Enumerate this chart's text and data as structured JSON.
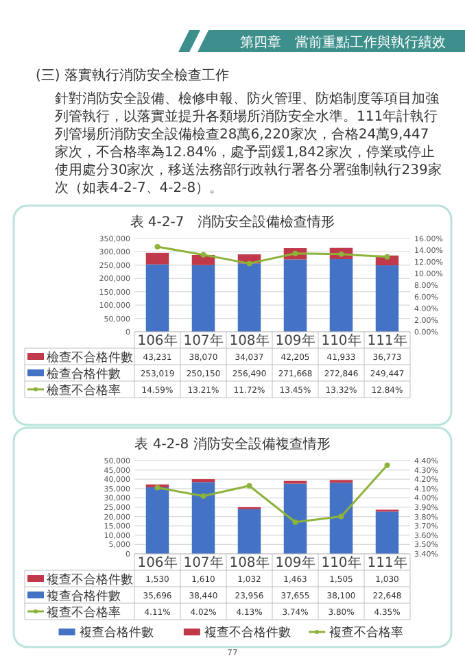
{
  "chart_data": [
    {
      "type": "bar",
      "title": "表 4-2-7　消防安全設備檢查情形",
      "stacked": true,
      "grid": "y",
      "legend": "left",
      "marker": "circle",
      "annotations": [
        "第四章　當前重點工作與執行績效",
        "(三) 落實執行消防安全檢查工作",
        "針對消防安全設備、檢修申報、防火管理、防焰制度等項目加強列管執行，以落實並提升各類場所消防安全水準。111年計執行列管場所消防安全設備檢查28萬6,220家次，合格24萬9,447家次，不合格率為12.84%，處予罰鍰1,842家次，停業或停止使用處分30家次，移送法務部行政執行署各分署強制執行239家次（如表4-2-7、4-2-8）。"
      ],
      "categories": [
        "106年",
        "107年",
        "108年",
        "109年",
        "110年",
        "111年"
      ],
      "ylim": [
        0,
        350000
      ],
      "yticks": [
        {
          "value": 0,
          "label": "0"
        },
        {
          "value": 50000,
          "label": "50,000"
        },
        {
          "value": 100000,
          "label": "100,000"
        },
        {
          "value": 150000,
          "label": "150,000"
        },
        {
          "value": 200000,
          "label": "200,000"
        },
        {
          "value": 250000,
          "label": "250,000"
        },
        {
          "value": 300000,
          "label": "300,000"
        },
        {
          "value": 350000,
          "label": "350,000"
        }
      ],
      "y2lim": [
        0,
        16
      ],
      "y2ticks": [
        {
          "value": 0,
          "label": "0.00%"
        },
        {
          "value": 2,
          "label": "2.00%"
        },
        {
          "value": 4,
          "label": "4.00%"
        },
        {
          "value": 6,
          "label": "6.00%"
        },
        {
          "value": 8,
          "label": "8.00%"
        },
        {
          "value": 10,
          "label": "10.00%"
        },
        {
          "value": 12,
          "label": "12.00%"
        },
        {
          "value": 14,
          "label": "14.00%"
        },
        {
          "value": 16,
          "label": "16.00%"
        }
      ],
      "series": [
        {
          "name": "檢查合格件數",
          "color": "#4472c4",
          "values": [
            253019,
            250150,
            256490,
            271668,
            272846,
            249447
          ],
          "value_labels": [
            "253,019",
            "250,150",
            "256,490",
            "271,668",
            "272,846",
            "249,447"
          ]
        },
        {
          "name": "檢查不合格件數",
          "color": "#c0394a",
          "values": [
            43231,
            38070,
            34037,
            42205,
            41933,
            36773
          ],
          "value_labels": [
            "43,231",
            "38,070",
            "34,037",
            "42,205",
            "41,933",
            "36,773"
          ]
        },
        {
          "name": "檢查不合格率",
          "type": "line",
          "axis": "y2",
          "color": "#8db33a",
          "values": [
            14.59,
            13.21,
            11.72,
            13.45,
            13.32,
            12.84
          ],
          "value_labels": [
            "14.59%",
            "13.21%",
            "11.72%",
            "13.45%",
            "13.32%",
            "12.84%"
          ]
        }
      ]
    },
    {
      "type": "bar",
      "title": "表 4-2-8 消防安全設備複查情形",
      "stacked": true,
      "grid": "y",
      "legend": "bottom",
      "marker": "circle",
      "annotations": [
        "77"
      ],
      "categories": [
        "106年",
        "107年",
        "108年",
        "109年",
        "110年",
        "111年"
      ],
      "ylim": [
        0,
        50000
      ],
      "yticks": [
        {
          "value": 0,
          "label": "0"
        },
        {
          "value": 5000,
          "label": "5,000"
        },
        {
          "value": 10000,
          "label": "10,000"
        },
        {
          "value": 15000,
          "label": "15,000"
        },
        {
          "value": 20000,
          "label": "20,000"
        },
        {
          "value": 25000,
          "label": "25,000"
        },
        {
          "value": 30000,
          "label": "30,000"
        },
        {
          "value": 35000,
          "label": "35,000"
        },
        {
          "value": 40000,
          "label": "40,000"
        },
        {
          "value": 45000,
          "label": "45,000"
        },
        {
          "value": 50000,
          "label": "50,000"
        }
      ],
      "y2lim": [
        3.4,
        4.4
      ],
      "y2ticks": [
        {
          "value": 3.4,
          "label": "3.40%"
        },
        {
          "value": 3.5,
          "label": "3.50%"
        },
        {
          "value": 3.6,
          "label": "3.60%"
        },
        {
          "value": 3.7,
          "label": "3.70%"
        },
        {
          "value": 3.8,
          "label": "3.80%"
        },
        {
          "value": 3.9,
          "label": "3.90%"
        },
        {
          "value": 4.0,
          "label": "4.00%"
        },
        {
          "value": 4.1,
          "label": "4.10%"
        },
        {
          "value": 4.2,
          "label": "4.20%"
        },
        {
          "value": 4.3,
          "label": "4.30%"
        },
        {
          "value": 4.4,
          "label": "4.40%"
        }
      ],
      "series": [
        {
          "name": "複查合格件數",
          "color": "#4472c4",
          "values": [
            35696,
            38440,
            23956,
            37655,
            38100,
            22648
          ],
          "value_labels": [
            "35,696",
            "38,440",
            "23,956",
            "37,655",
            "38,100",
            "22,648"
          ]
        },
        {
          "name": "複查不合格件數",
          "color": "#c0394a",
          "values": [
            1530,
            1610,
            1032,
            1463,
            1505,
            1030
          ],
          "value_labels": [
            "1,530",
            "1,610",
            "1,032",
            "1,463",
            "1,505",
            "1,030"
          ]
        },
        {
          "name": "複查不合格率",
          "type": "line",
          "axis": "y2",
          "color": "#8db33a",
          "values": [
            4.11,
            4.02,
            4.13,
            3.74,
            3.8,
            4.35
          ],
          "value_labels": [
            "4.11%",
            "4.02%",
            "4.13%",
            "3.74%",
            "3.80%",
            "4.35%"
          ]
        }
      ]
    }
  ]
}
